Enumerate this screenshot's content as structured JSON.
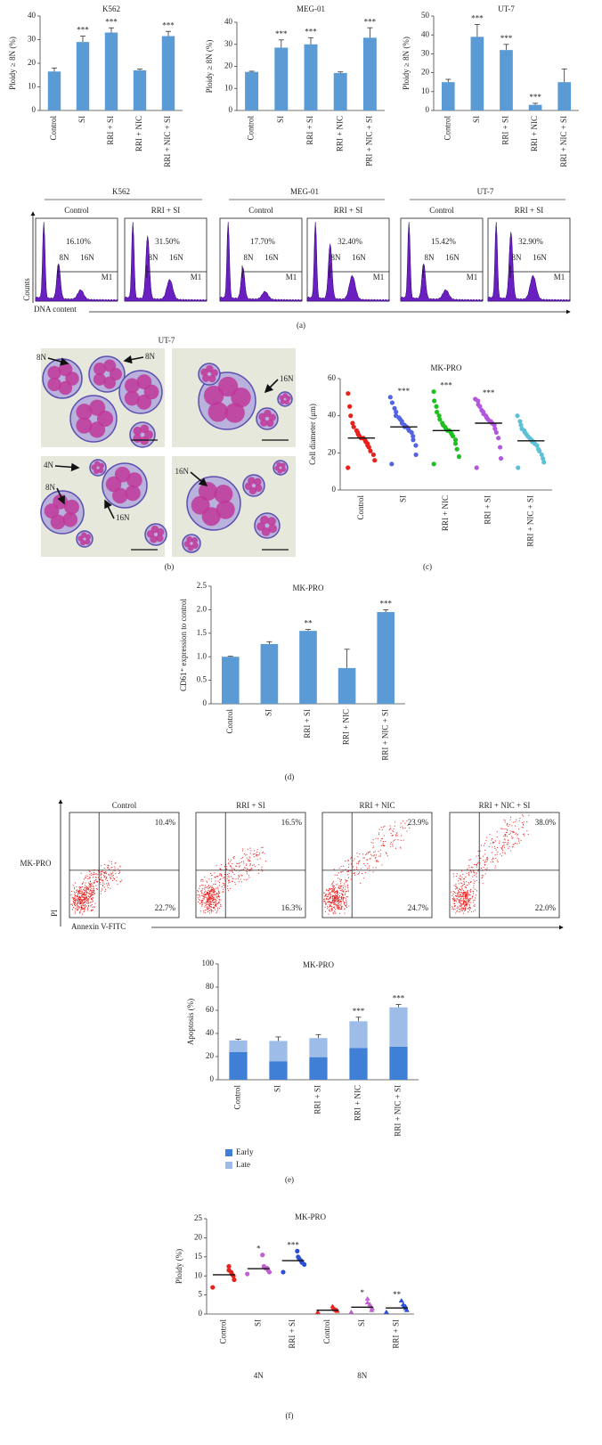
{
  "chart_data": [
    {
      "type": "bar",
      "title": "K562",
      "y_label": "Ploidy ≥ 8N (%)",
      "categories": [
        "Control",
        "SI",
        "RRI + SI",
        "RRI + NIC",
        "RRI + NIC + SI"
      ],
      "values": [
        16.5,
        29,
        33,
        17,
        31.5
      ],
      "errors": [
        1.5,
        2.5,
        2,
        0.5,
        2
      ],
      "significance": [
        null,
        "***",
        "***",
        null,
        "***"
      ],
      "color": "#5b9bd5",
      "ylim": [
        0,
        40
      ],
      "yticks": [
        0,
        10,
        20,
        30,
        40
      ]
    },
    {
      "type": "bar",
      "title": "MEG-01",
      "y_label": "Ploidy ≥ 8N (%)",
      "categories": [
        "Control",
        "SI",
        "RRI + SI",
        "RRI + NIC",
        "PRI + NIC + SI"
      ],
      "values": [
        17.5,
        28.5,
        30,
        17,
        33
      ],
      "errors": [
        0.3,
        3.5,
        3,
        0.5,
        4.5
      ],
      "significance": [
        null,
        "***",
        "***",
        null,
        "***"
      ],
      "color": "#5b9bd5",
      "ylim": [
        0,
        40
      ],
      "yticks": [
        0,
        10,
        20,
        30,
        40
      ]
    },
    {
      "type": "bar",
      "title": "UT-7",
      "y_label": "Ploidy ≥ 8N (%)",
      "categories": [
        "Control",
        "SI",
        "RRI + SI",
        "RRI + NIC",
        "RRI + NIC + SI"
      ],
      "values": [
        15,
        39,
        32,
        3,
        15
      ],
      "errors": [
        1.5,
        6.5,
        3,
        0.8,
        7
      ],
      "significance": [
        null,
        "***",
        "***",
        "***",
        null
      ],
      "color": "#5b9bd5",
      "ylim": [
        0,
        50
      ],
      "yticks": [
        0,
        10,
        20,
        30,
        40,
        50
      ]
    },
    {
      "type": "strip",
      "title": "MK-PRO",
      "y_label": "Cell diameter (μm)",
      "categories": [
        "Control",
        "SI",
        "RRI + NIC",
        "RRI + SI",
        "RRI + NIC + SI"
      ],
      "points": [
        [
          12,
          16,
          19,
          21,
          23,
          24,
          25,
          26,
          27,
          28,
          28,
          29,
          30,
          31,
          32,
          34,
          36,
          40,
          45,
          52
        ],
        [
          14,
          19,
          24,
          27,
          29,
          31,
          32,
          33,
          34,
          34,
          35,
          36,
          37,
          38,
          39,
          40,
          42,
          44,
          47,
          50
        ],
        [
          14,
          18,
          22,
          25,
          27,
          29,
          30,
          31,
          32,
          32,
          33,
          34,
          35,
          36,
          38,
          40,
          42,
          45,
          48,
          53
        ],
        [
          12,
          17,
          23,
          28,
          31,
          33,
          35,
          36,
          37,
          37,
          38,
          39,
          40,
          41,
          42,
          43,
          45,
          46,
          48,
          49
        ],
        [
          12,
          15,
          17,
          19,
          21,
          22,
          24,
          25,
          26,
          26,
          27,
          28,
          29,
          30,
          31,
          32,
          33,
          35,
          37,
          40
        ]
      ],
      "means": [
        28,
        34,
        32,
        36,
        26.5
      ],
      "significance": [
        null,
        "***",
        "***",
        "***",
        null
      ],
      "colors": [
        "#e8211d",
        "#5464e0",
        "#1fbf1f",
        "#b256e0",
        "#5ec0d6"
      ],
      "markers": [
        "circle",
        "circle",
        "circle",
        "circle",
        "circle"
      ],
      "ylim": [
        0,
        60
      ],
      "yticks": [
        0,
        20,
        40,
        60
      ]
    },
    {
      "type": "bar",
      "title": "MK-PRO",
      "y_label": "CD61⁺ expression to control",
      "categories": [
        "Control",
        "SI",
        "RRI + SI",
        "RRI + NIC",
        "RRI + NIC + SI"
      ],
      "values": [
        1.0,
        1.27,
        1.55,
        0.76,
        1.95
      ],
      "errors": [
        0.01,
        0.05,
        0.03,
        0.4,
        0.05
      ],
      "significance": [
        null,
        null,
        "**",
        null,
        "***"
      ],
      "color": "#5b9bd5",
      "ylim": [
        0,
        2.5
      ],
      "yticks": [
        0,
        0.5,
        {
          "value": 1,
          "label": "1.0"
        },
        1.5,
        {
          "value": 2,
          "label": "2.0"
        },
        2.5
      ]
    },
    {
      "type": "stacked_bar",
      "title": "MK-PRO",
      "y_label": "Apoptosis (%)",
      "categories": [
        "Control",
        "SI",
        "RRI + SI",
        "RRI + NIC",
        "RRI + NIC + SI"
      ],
      "series": [
        {
          "name": "Early",
          "color": "#3f7fd6",
          "values": [
            24,
            16,
            19.5,
            27.5,
            28.5
          ]
        },
        {
          "name": "Late",
          "color": "#9dbde8",
          "values": [
            10,
            17.5,
            16.5,
            23,
            34
          ],
          "errors": [
            1,
            3.5,
            3,
            3.5,
            2.5
          ]
        }
      ],
      "significance": [
        null,
        null,
        null,
        "***",
        "***"
      ],
      "ylim": [
        0,
        100
      ],
      "yticks": [
        0,
        20,
        40,
        60,
        80,
        100
      ]
    },
    {
      "type": "strip",
      "title": "MK-PRO",
      "y_label": "Ploidy (%)",
      "categories": [
        "Control",
        "SI",
        "RRI + SI",
        "Control",
        "SI",
        "RRI + SI"
      ],
      "group_labels": [
        "4N",
        "8N"
      ],
      "points": [
        [
          7,
          9,
          10,
          10.5,
          11,
          11.5,
          12.5
        ],
        [
          10.5,
          11,
          11.5,
          12,
          12,
          12.5,
          15.5
        ],
        [
          11,
          13,
          13.5,
          14,
          14.5,
          15,
          16.5
        ],
        [
          0.5,
          0.8,
          1,
          1,
          1.2,
          1.4,
          2
        ],
        [
          0.5,
          1,
          1.5,
          2,
          2.5,
          3,
          4
        ],
        [
          0.5,
          1,
          1.5,
          2,
          2,
          2.5,
          3.5
        ]
      ],
      "means": [
        10.3,
        11.9,
        14,
        1,
        1.8,
        1.6
      ],
      "significance": [
        null,
        "*",
        "***",
        null,
        "*",
        "**"
      ],
      "colors": [
        "#e8211d",
        "#c060d0",
        "#2a4ed8",
        "#e8211d",
        "#c060d0",
        "#2a4ed8"
      ],
      "markers": [
        "circle",
        "circle",
        "circle",
        "triangle",
        "triangle",
        "triangle"
      ],
      "ylim": [
        0,
        25
      ],
      "yticks": [
        0,
        5,
        10,
        15,
        20,
        25
      ]
    }
  ],
  "flow_histograms": {
    "y_axis": "Counts",
    "x_axis": "DNA content",
    "gate_labels": [
      "8N",
      "16N"
    ],
    "marker": "M1",
    "groups": [
      {
        "title": "K562",
        "samples": [
          {
            "label": "Control",
            "percent": "16.10%"
          },
          {
            "label": "RRI + SI",
            "percent": "31.50%"
          }
        ]
      },
      {
        "title": "MEG-01",
        "samples": [
          {
            "label": "Control",
            "percent": "17.70%"
          },
          {
            "label": "RRI + SI",
            "percent": "32.40%"
          }
        ]
      },
      {
        "title": "UT-7",
        "samples": [
          {
            "label": "Control",
            "percent": "15.42%"
          },
          {
            "label": "RRI + SI",
            "percent": "32.90%"
          }
        ]
      }
    ]
  },
  "micrographs": {
    "title": "UT-7",
    "images": [
      {
        "arrows": [
          "8N",
          "8N"
        ]
      },
      {
        "arrows": [
          "16N"
        ]
      },
      {
        "arrows": [
          "4N",
          "8N",
          "16N"
        ]
      },
      {
        "arrows": [
          "16N"
        ]
      }
    ]
  },
  "flow_scatter": {
    "row_label": "MK-PRO",
    "y_axis": "PI",
    "x_axis": "Annexin V-FITC",
    "plots": [
      {
        "title": "Control",
        "upper_right": "10.4%",
        "lower_right": "22.7%"
      },
      {
        "title": "RRI + SI",
        "upper_right": "16.5%",
        "lower_right": "16.3%"
      },
      {
        "title": "RRI + NIC",
        "upper_right": "23.9%",
        "lower_right": "24.7%"
      },
      {
        "title": "RRI + NIC + SI",
        "upper_right": "38.0%",
        "lower_right": "22.0%"
      }
    ]
  },
  "panel_labels": [
    "(a)",
    "(b)",
    "(c)",
    "(d)",
    "(e)",
    "(f)"
  ]
}
